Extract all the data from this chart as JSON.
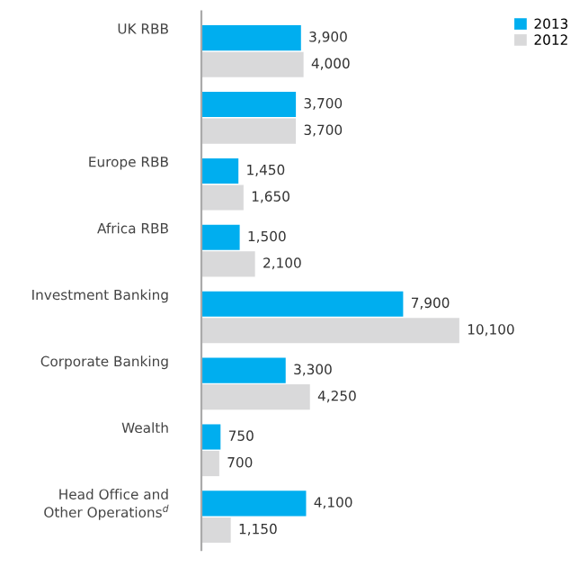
{
  "chart_data": {
    "type": "bar",
    "orientation": "horizontal",
    "categories": [
      "UK RBB",
      null,
      "Europe RBB",
      "Africa RBB",
      "Investment Banking",
      "Corporate Banking",
      "Wealth",
      "Head Office and\nOther Operations$^{d}$"
    ],
    "series": [
      {
        "name": "2013",
        "color": "#00aeef",
        "values": [
          3900,
          3700,
          1450,
          1500,
          7900,
          3300,
          750,
          4100
        ],
        "value_labels": [
          "3,900",
          "3,700",
          "1,450",
          "1,500",
          "7,900",
          "3,300",
          "750",
          "4,100"
        ]
      },
      {
        "name": "2012",
        "color": "#d9d9da",
        "values": [
          4000,
          3700,
          1650,
          2100,
          10100,
          4250,
          700,
          1150
        ],
        "value_labels": [
          "4,000",
          "3,700",
          "1,650",
          "2,100",
          "10,100",
          "4,250",
          "700",
          "1,150"
        ]
      }
    ],
    "legend": "top right"
  }
}
